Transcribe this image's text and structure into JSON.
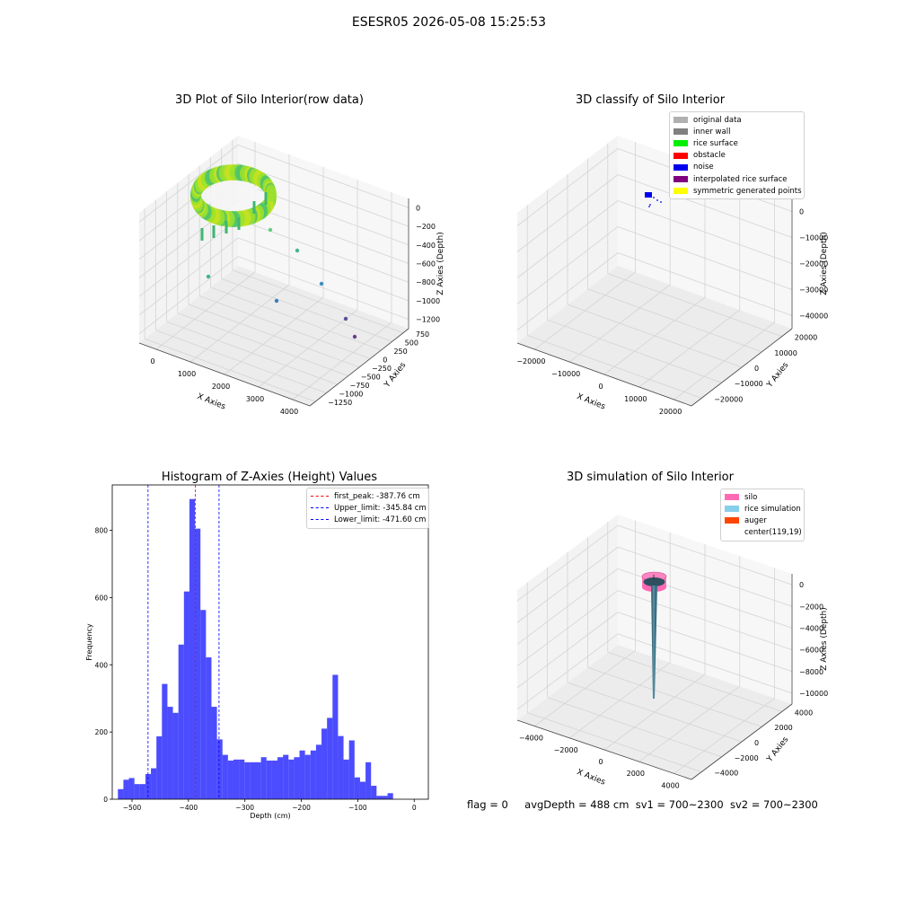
{
  "suptitle": "ESESR05 2026-05-08 15:25:53",
  "panels": {
    "raw": {
      "title": "3D Plot of Silo Interior(row data)",
      "xlabel": "X Axies",
      "ylabel": "Y Axies",
      "zlabel": "Z Axies (Depth)",
      "xticks": [
        "0",
        "1000",
        "2000",
        "3000",
        "4000"
      ],
      "yticks": [
        "750",
        "500",
        "250",
        "0",
        "−250",
        "−500",
        "−750",
        "−1000",
        "−1250"
      ],
      "zticks": [
        "0",
        "−200",
        "−400",
        "−600",
        "−800",
        "−1000",
        "−1200"
      ]
    },
    "classify": {
      "title": "3D classify of Silo Interior",
      "xlabel": "X Axies",
      "ylabel": "Y Axies",
      "zlabel": "Z Axies (Depth)",
      "xticks": [
        "−20000",
        "−10000",
        "0",
        "10000",
        "20000"
      ],
      "yticks": [
        "20000",
        "10000",
        "0",
        "−10000",
        "−20000"
      ],
      "zticks": [
        "0",
        "−10000",
        "−20000",
        "−30000",
        "−40000"
      ],
      "legend": [
        {
          "label": "original data",
          "color": "#b0b0b0"
        },
        {
          "label": "inner wall",
          "color": "#808080"
        },
        {
          "label": "rice surface",
          "color": "#00ee00"
        },
        {
          "label": "obstacle",
          "color": "#ff0000"
        },
        {
          "label": "noise",
          "color": "#0000ee"
        },
        {
          "label": "interpolated rice surface",
          "color": "#800080"
        },
        {
          "label": "symmetric generated points",
          "color": "#ffff00"
        }
      ]
    },
    "simulation": {
      "title": "3D simulation of Silo Interior",
      "xlabel": "X Axies",
      "ylabel": "Y Axies",
      "zlabel": "Z Axies (Depth)",
      "xticks": [
        "−4000",
        "−2000",
        "0",
        "2000",
        "4000"
      ],
      "yticks": [
        "4000",
        "2000",
        "0",
        "−2000",
        "−4000"
      ],
      "zticks": [
        "0",
        "−2000",
        "−4000",
        "−6000",
        "−8000",
        "−10000"
      ],
      "legend": [
        {
          "label": "silo",
          "color": "#ff69b4"
        },
        {
          "label": "rice simulation",
          "color": "#87ceeb"
        },
        {
          "label": "auger",
          "color": "#ff4500"
        },
        {
          "label": "center(119,19)",
          "color": "#ffffff"
        }
      ]
    }
  },
  "chart_data": {
    "type": "bar",
    "title": "Histogram of Z-Axies (Height) Values",
    "xlabel": "Depth (cm)",
    "ylabel": "Frequency",
    "xlim": [
      -535,
      25
    ],
    "ylim": [
      0,
      935
    ],
    "xticks": [
      -500,
      -400,
      -300,
      -200,
      -100,
      0
    ],
    "xtick_labels": [
      "−500",
      "−400",
      "−300",
      "−200",
      "−100",
      "0"
    ],
    "yticks": [
      0,
      200,
      400,
      600,
      800
    ],
    "bin_start": -525,
    "bin_width": 9.75,
    "values": [
      30,
      58,
      63,
      45,
      45,
      75,
      92,
      187,
      343,
      275,
      257,
      460,
      618,
      893,
      805,
      563,
      422,
      275,
      178,
      132,
      115,
      118,
      118,
      110,
      110,
      110,
      125,
      115,
      115,
      125,
      132,
      118,
      125,
      145,
      132,
      145,
      162,
      210,
      242,
      370,
      188,
      118,
      175,
      65,
      52,
      110,
      40,
      10,
      10,
      18
    ],
    "bar_color": "#0000ff",
    "lines": [
      {
        "label": "first_peak: -387.76 cm",
        "x": -387.76,
        "color": "#ff0000"
      },
      {
        "label": "Upper_limit: -345.84 cm",
        "x": -345.84,
        "color": "#0000ff"
      },
      {
        "label": "Lower_limit: -471.60 cm",
        "x": -471.6,
        "color": "#0000ff"
      }
    ],
    "legend_position": "top-right"
  },
  "status": {
    "flag": "flag = 0",
    "avg": "avgDepth = 488 cm",
    "sv1": "sv1 = 700~2300",
    "sv2": "sv2 = 700~2300"
  }
}
